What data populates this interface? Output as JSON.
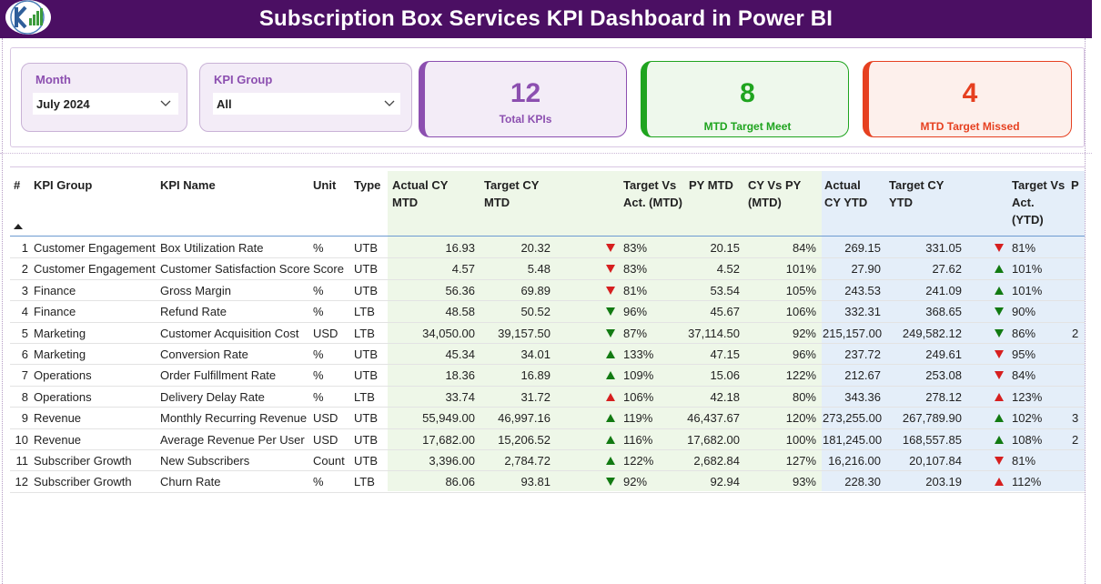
{
  "header": {
    "title": "Subscription Box Services KPI Dashboard in Power BI"
  },
  "filters": {
    "month": {
      "label": "Month",
      "value": "July 2024"
    },
    "kpi_group": {
      "label": "KPI Group",
      "value": "All"
    }
  },
  "cards": {
    "total": {
      "value": "12",
      "caption": "Total KPIs"
    },
    "meet": {
      "value": "8",
      "caption": "MTD Target Meet"
    },
    "missed": {
      "value": "4",
      "caption": "MTD Target Missed"
    }
  },
  "colors": {
    "header_bg": "#4b0f63",
    "accent_purple": "#8c4fb0",
    "good": "#127a12",
    "bad": "#d61f1f",
    "mtd_bg": "#eef7e8",
    "ytd_bg": "#e4eef9"
  },
  "table": {
    "columns": {
      "num": "#",
      "group": "KPI Group",
      "name": "KPI Name",
      "unit": "Unit",
      "type": "Type",
      "actual_mtd": "Actual CY MTD",
      "target_mtd": "Target CY MTD",
      "tva_mtd": "Target Vs Act. (MTD)",
      "py_mtd": "PY MTD",
      "cyvpy_mtd": "CY Vs PY (MTD)",
      "actual_ytd": "Actual CY YTD",
      "target_ytd": "Target CY YTD",
      "tva_ytd": "Target Vs Act. (YTD)",
      "py_ytd_partial": "P"
    },
    "rows": [
      {
        "n": "1",
        "group": "Customer Engagement",
        "name": "Box Utilization Rate",
        "unit": "%",
        "type": "UTB",
        "actual_mtd": "16.93",
        "target_mtd": "20.32",
        "mtd_icon": "down-red",
        "tva_mtd": "83%",
        "py_mtd": "20.15",
        "cyvpy_mtd": "84%",
        "actual_ytd": "269.15",
        "target_ytd": "331.05",
        "ytd_icon": "down-red",
        "tva_ytd": "81%",
        "py_ytd_partial": ""
      },
      {
        "n": "2",
        "group": "Customer Engagement",
        "name": "Customer Satisfaction Score",
        "unit": "Score",
        "type": "UTB",
        "actual_mtd": "4.57",
        "target_mtd": "5.48",
        "mtd_icon": "down-red",
        "tva_mtd": "83%",
        "py_mtd": "4.52",
        "cyvpy_mtd": "101%",
        "actual_ytd": "27.90",
        "target_ytd": "27.62",
        "ytd_icon": "up-green",
        "tva_ytd": "101%",
        "py_ytd_partial": ""
      },
      {
        "n": "3",
        "group": "Finance",
        "name": "Gross Margin",
        "unit": "%",
        "type": "UTB",
        "actual_mtd": "56.36",
        "target_mtd": "69.89",
        "mtd_icon": "down-red",
        "tva_mtd": "81%",
        "py_mtd": "53.54",
        "cyvpy_mtd": "105%",
        "actual_ytd": "243.53",
        "target_ytd": "241.09",
        "ytd_icon": "up-green",
        "tva_ytd": "101%",
        "py_ytd_partial": ""
      },
      {
        "n": "4",
        "group": "Finance",
        "name": "Refund Rate",
        "unit": "%",
        "type": "LTB",
        "actual_mtd": "48.58",
        "target_mtd": "50.52",
        "mtd_icon": "down-green",
        "tva_mtd": "96%",
        "py_mtd": "45.67",
        "cyvpy_mtd": "106%",
        "actual_ytd": "332.31",
        "target_ytd": "368.65",
        "ytd_icon": "down-green",
        "tva_ytd": "90%",
        "py_ytd_partial": ""
      },
      {
        "n": "5",
        "group": "Marketing",
        "name": "Customer Acquisition Cost",
        "unit": "USD",
        "type": "LTB",
        "actual_mtd": "34,050.00",
        "target_mtd": "39,157.50",
        "mtd_icon": "down-green",
        "tva_mtd": "87%",
        "py_mtd": "37,114.50",
        "cyvpy_mtd": "92%",
        "actual_ytd": "215,157.00",
        "target_ytd": "249,582.12",
        "ytd_icon": "down-green",
        "tva_ytd": "86%",
        "py_ytd_partial": "2"
      },
      {
        "n": "6",
        "group": "Marketing",
        "name": "Conversion Rate",
        "unit": "%",
        "type": "UTB",
        "actual_mtd": "45.34",
        "target_mtd": "34.01",
        "mtd_icon": "up-green",
        "tva_mtd": "133%",
        "py_mtd": "47.15",
        "cyvpy_mtd": "96%",
        "actual_ytd": "237.72",
        "target_ytd": "249.61",
        "ytd_icon": "down-red",
        "tva_ytd": "95%",
        "py_ytd_partial": ""
      },
      {
        "n": "7",
        "group": "Operations",
        "name": "Order Fulfillment Rate",
        "unit": "%",
        "type": "UTB",
        "actual_mtd": "18.36",
        "target_mtd": "16.89",
        "mtd_icon": "up-green",
        "tva_mtd": "109%",
        "py_mtd": "15.06",
        "cyvpy_mtd": "122%",
        "actual_ytd": "212.67",
        "target_ytd": "253.08",
        "ytd_icon": "down-red",
        "tva_ytd": "84%",
        "py_ytd_partial": ""
      },
      {
        "n": "8",
        "group": "Operations",
        "name": "Delivery Delay Rate",
        "unit": "%",
        "type": "LTB",
        "actual_mtd": "33.74",
        "target_mtd": "31.72",
        "mtd_icon": "up-red",
        "tva_mtd": "106%",
        "py_mtd": "42.18",
        "cyvpy_mtd": "80%",
        "actual_ytd": "343.36",
        "target_ytd": "278.12",
        "ytd_icon": "up-red",
        "tva_ytd": "123%",
        "py_ytd_partial": ""
      },
      {
        "n": "9",
        "group": "Revenue",
        "name": "Monthly Recurring Revenue",
        "unit": "USD",
        "type": "UTB",
        "actual_mtd": "55,949.00",
        "target_mtd": "46,997.16",
        "mtd_icon": "up-green",
        "tva_mtd": "119%",
        "py_mtd": "46,437.67",
        "cyvpy_mtd": "120%",
        "actual_ytd": "273,255.00",
        "target_ytd": "267,789.90",
        "ytd_icon": "up-green",
        "tva_ytd": "102%",
        "py_ytd_partial": "3"
      },
      {
        "n": "10",
        "group": "Revenue",
        "name": "Average Revenue Per User",
        "unit": "USD",
        "type": "UTB",
        "actual_mtd": "17,682.00",
        "target_mtd": "15,206.52",
        "mtd_icon": "up-green",
        "tva_mtd": "116%",
        "py_mtd": "17,682.00",
        "cyvpy_mtd": "100%",
        "actual_ytd": "181,245.00",
        "target_ytd": "168,557.85",
        "ytd_icon": "up-green",
        "tva_ytd": "108%",
        "py_ytd_partial": "2"
      },
      {
        "n": "11",
        "group": "Subscriber Growth",
        "name": "New Subscribers",
        "unit": "Count",
        "type": "UTB",
        "actual_mtd": "3,396.00",
        "target_mtd": "2,784.72",
        "mtd_icon": "up-green",
        "tva_mtd": "122%",
        "py_mtd": "2,682.84",
        "cyvpy_mtd": "127%",
        "actual_ytd": "16,216.00",
        "target_ytd": "20,107.84",
        "ytd_icon": "down-red",
        "tva_ytd": "81%",
        "py_ytd_partial": ""
      },
      {
        "n": "12",
        "group": "Subscriber Growth",
        "name": "Churn Rate",
        "unit": "%",
        "type": "LTB",
        "actual_mtd": "86.06",
        "target_mtd": "93.81",
        "mtd_icon": "down-green",
        "tva_mtd": "92%",
        "py_mtd": "92.94",
        "cyvpy_mtd": "93%",
        "actual_ytd": "228.30",
        "target_ytd": "203.19",
        "ytd_icon": "up-red",
        "tva_ytd": "112%",
        "py_ytd_partial": ""
      }
    ]
  }
}
